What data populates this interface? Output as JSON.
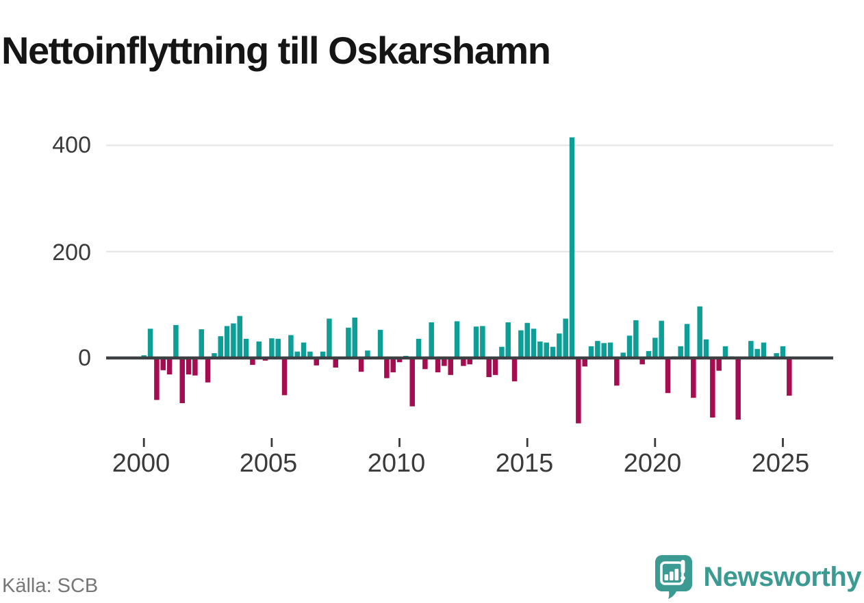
{
  "title": "Nettoinflyttning till Oskarshamn",
  "source": "Källa: SCB",
  "branding": {
    "name": "Newsworthy",
    "logo_icon": "newsworthy-speech-bubble-chart-icon"
  },
  "colors": {
    "positive_bar": "#0d9e97",
    "negative_bar": "#a50d50",
    "axis": "#3d4043",
    "grid": "#e3e3e3",
    "tick": "#3a3a3a",
    "label_text": "#3a3a3a",
    "title_text": "#151515",
    "source_text": "#767676",
    "brand_teal": "#3b9a91"
  },
  "chart_data": {
    "type": "bar",
    "title": "Nettoinflyttning till Oskarshamn",
    "xlabel": "",
    "ylabel": "",
    "x_unit": "quarter",
    "grid": "horizontal",
    "legend": "none",
    "y_ticks": [
      400,
      200,
      0
    ],
    "ylim": [
      -140,
      445
    ],
    "x_tick_years": [
      2000,
      2005,
      2010,
      2015,
      2020,
      2025
    ],
    "categories": [
      "2000 Q1",
      "2000 Q2",
      "2000 Q3",
      "2000 Q4",
      "2001 Q1",
      "2001 Q2",
      "2001 Q3",
      "2001 Q4",
      "2002 Q1",
      "2002 Q2",
      "2002 Q3",
      "2002 Q4",
      "2003 Q1",
      "2003 Q2",
      "2003 Q3",
      "2003 Q4",
      "2004 Q1",
      "2004 Q2",
      "2004 Q3",
      "2004 Q4",
      "2005 Q1",
      "2005 Q2",
      "2005 Q3",
      "2005 Q4",
      "2006 Q1",
      "2006 Q2",
      "2006 Q3",
      "2006 Q4",
      "2007 Q1",
      "2007 Q2",
      "2007 Q3",
      "2007 Q4",
      "2008 Q1",
      "2008 Q2",
      "2008 Q3",
      "2008 Q4",
      "2009 Q1",
      "2009 Q2",
      "2009 Q3",
      "2009 Q4",
      "2010 Q1",
      "2010 Q2",
      "2010 Q3",
      "2010 Q4",
      "2011 Q1",
      "2011 Q2",
      "2011 Q3",
      "2011 Q4",
      "2012 Q1",
      "2012 Q2",
      "2012 Q3",
      "2012 Q4",
      "2013 Q1",
      "2013 Q2",
      "2013 Q3",
      "2013 Q4",
      "2014 Q1",
      "2014 Q2",
      "2014 Q3",
      "2014 Q4",
      "2015 Q1",
      "2015 Q2",
      "2015 Q3",
      "2015 Q4",
      "2016 Q1",
      "2016 Q2",
      "2016 Q3",
      "2016 Q4",
      "2017 Q1",
      "2017 Q2",
      "2017 Q3",
      "2017 Q4",
      "2018 Q1",
      "2018 Q2",
      "2018 Q3",
      "2018 Q4",
      "2019 Q1",
      "2019 Q2",
      "2019 Q3",
      "2019 Q4",
      "2020 Q1",
      "2020 Q2",
      "2020 Q3",
      "2020 Q4",
      "2021 Q1",
      "2021 Q2",
      "2021 Q3",
      "2021 Q4",
      "2022 Q1",
      "2022 Q2",
      "2022 Q3",
      "2022 Q4",
      "2023 Q1",
      "2023 Q2",
      "2023 Q3",
      "2023 Q4",
      "2024 Q1",
      "2024 Q2",
      "2024 Q3",
      "2024 Q4",
      "2025 Q1",
      "2025 Q2"
    ],
    "values": [
      5,
      55,
      -79,
      -23,
      -31,
      62,
      -85,
      -31,
      -33,
      54,
      -46,
      9,
      41,
      60,
      65,
      79,
      36,
      -13,
      31,
      -5,
      37,
      36,
      -70,
      43,
      12,
      29,
      12,
      -14,
      12,
      74,
      -18,
      0,
      57,
      76,
      -26,
      14,
      0,
      53,
      -38,
      -27,
      -8,
      4,
      -91,
      36,
      -21,
      67,
      -27,
      -15,
      -32,
      69,
      -15,
      -12,
      59,
      60,
      -36,
      -32,
      21,
      67,
      -44,
      52,
      66,
      55,
      31,
      29,
      21,
      46,
      74,
      415,
      -123,
      -16,
      22,
      32,
      28,
      29,
      -52,
      10,
      42,
      71,
      -12,
      13,
      38,
      70,
      -66,
      3,
      22,
      64,
      -75,
      97,
      35,
      -112,
      -24,
      22,
      3,
      -116,
      0,
      32,
      17,
      29,
      0,
      9,
      22,
      -71
    ]
  }
}
